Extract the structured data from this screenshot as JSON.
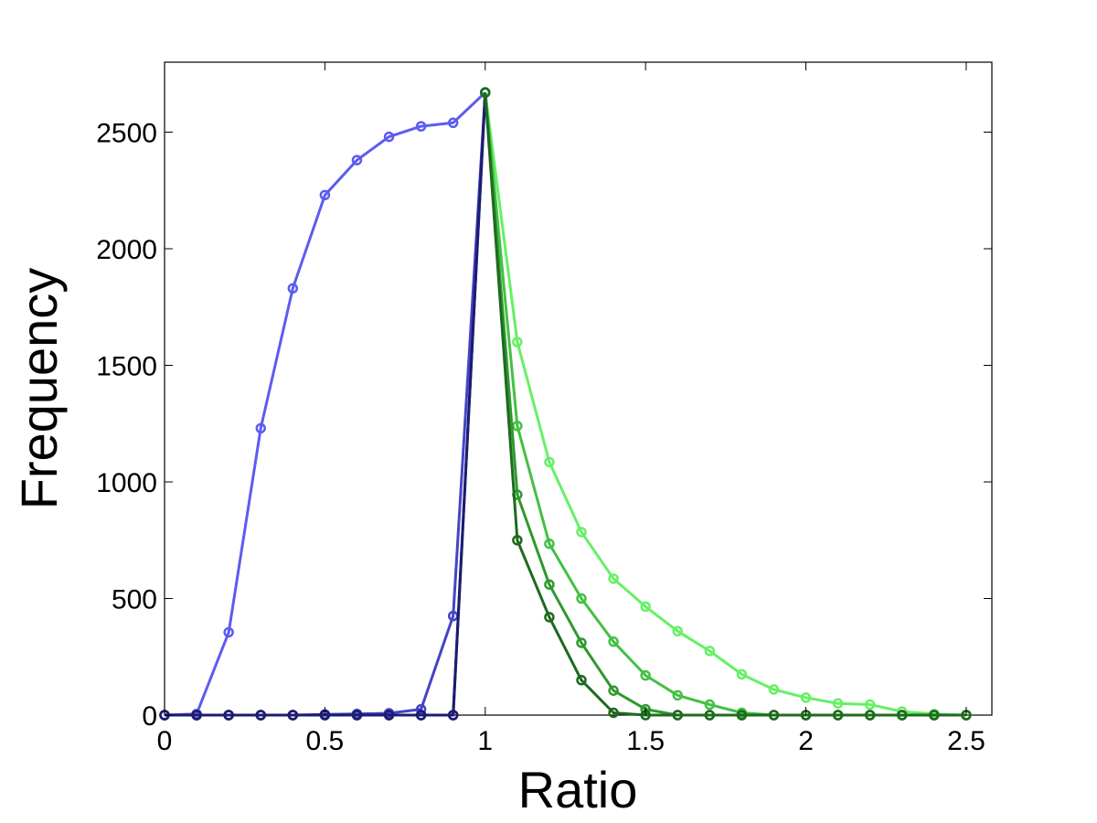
{
  "chart_data": {
    "type": "line",
    "title": "",
    "xlabel": "Ratio",
    "ylabel": "Frequency",
    "xlim": [
      0,
      2.58
    ],
    "ylim": [
      0,
      2800
    ],
    "xticks": [
      0,
      0.5,
      1,
      1.5,
      2,
      2.5
    ],
    "xtick_labels": [
      "0",
      "0.5",
      "1",
      "1.5",
      "2",
      "2.5"
    ],
    "yticks": [
      0,
      500,
      1000,
      1500,
      2000,
      2500
    ],
    "ytick_labels": [
      "0",
      "500",
      "1000",
      "1500",
      "2000",
      "2500"
    ],
    "grid": false,
    "legend": "none",
    "series": [
      {
        "color": "#5c5cf0",
        "x": [
          0,
          0.1,
          0.2,
          0.3,
          0.4,
          0.5,
          0.6,
          0.7,
          0.8,
          0.9,
          1.0
        ],
        "y": [
          0,
          5,
          355,
          1230,
          1830,
          2230,
          2380,
          2480,
          2525,
          2540,
          2670
        ]
      },
      {
        "color": "#4444c8",
        "x": [
          0,
          0.1,
          0.2,
          0.3,
          0.4,
          0.5,
          0.6,
          0.7,
          0.8,
          0.9,
          1.0
        ],
        "y": [
          0,
          0,
          0,
          0,
          0,
          3,
          5,
          8,
          25,
          425,
          2670
        ]
      },
      {
        "color": "#2a2a9a",
        "x": [
          0,
          0.1,
          0.2,
          0.3,
          0.4,
          0.5,
          0.6,
          0.7,
          0.8,
          0.9,
          1.0
        ],
        "y": [
          0,
          0,
          0,
          0,
          0,
          0,
          0,
          0,
          0,
          0,
          2670
        ]
      },
      {
        "color": "#1c1c70",
        "x": [
          0,
          0.1,
          0.2,
          0.3,
          0.4,
          0.5,
          0.6,
          0.7,
          0.8,
          0.9,
          1.0
        ],
        "y": [
          0,
          0,
          0,
          0,
          0,
          0,
          0,
          0,
          0,
          0,
          2670
        ]
      },
      {
        "color": "#66f066",
        "x": [
          1.0,
          1.1,
          1.2,
          1.3,
          1.4,
          1.5,
          1.6,
          1.7,
          1.8,
          1.9,
          2.0,
          2.1,
          2.2,
          2.3,
          2.4,
          2.5
        ],
        "y": [
          2670,
          1600,
          1085,
          785,
          585,
          465,
          360,
          275,
          175,
          110,
          75,
          50,
          45,
          15,
          5,
          0
        ]
      },
      {
        "color": "#44c044",
        "x": [
          1.0,
          1.1,
          1.2,
          1.3,
          1.4,
          1.5,
          1.6,
          1.7,
          1.8,
          1.9,
          2.0,
          2.1,
          2.2,
          2.3,
          2.4,
          2.5
        ],
        "y": [
          2670,
          1240,
          735,
          500,
          315,
          170,
          85,
          45,
          10,
          0,
          0,
          0,
          0,
          0,
          0,
          0
        ]
      },
      {
        "color": "#2e9a2e",
        "x": [
          1.0,
          1.1,
          1.2,
          1.3,
          1.4,
          1.5,
          1.6,
          1.7,
          1.8,
          1.9,
          2.0,
          2.1,
          2.2,
          2.3,
          2.4,
          2.5
        ],
        "y": [
          2670,
          945,
          560,
          310,
          105,
          25,
          0,
          0,
          0,
          0,
          0,
          0,
          0,
          0,
          0,
          0
        ]
      },
      {
        "color": "#1f6a1f",
        "x": [
          1.0,
          1.1,
          1.2,
          1.3,
          1.4,
          1.5,
          1.6,
          1.7,
          1.8,
          1.9,
          2.0,
          2.1,
          2.2,
          2.3,
          2.4,
          2.5
        ],
        "y": [
          2670,
          750,
          420,
          150,
          10,
          0,
          0,
          0,
          0,
          0,
          0,
          0,
          0,
          0,
          0,
          0
        ]
      }
    ]
  }
}
